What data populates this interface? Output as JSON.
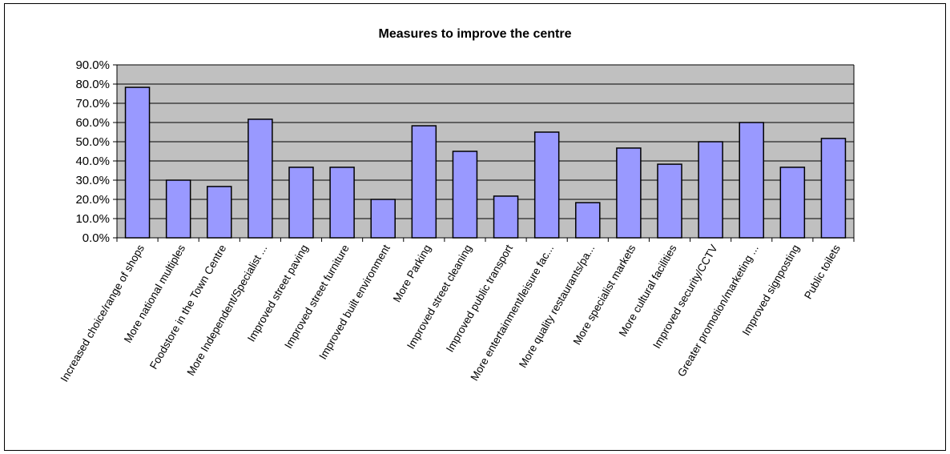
{
  "colors": {
    "plot_background": "#c0c0c0",
    "bar_fill": "#9999ff",
    "bar_stroke": "#000000",
    "gridline": "#000000"
  },
  "chart_data": {
    "type": "bar",
    "title": "Measures to improve the centre",
    "xlabel": "",
    "ylabel": "",
    "ylim": [
      0,
      90
    ],
    "y_tick_step": 10,
    "y_tick_format": "percent_one_decimal",
    "y_ticks": [
      "0.0%",
      "10.0%",
      "20.0%",
      "30.0%",
      "40.0%",
      "50.0%",
      "60.0%",
      "70.0%",
      "80.0%",
      "90.0%"
    ],
    "grid": "horizontal",
    "legend": "none",
    "categories": [
      "Increased choice/range of shops",
      "More national multiples",
      "Foodstore in the Town Centre",
      "More Independent/Specialist ...",
      "Improved street paving",
      "Improved street furniture",
      "Improved built environment",
      "More Parking",
      "Improved street cleaning",
      "Improved public transport",
      "More entertainment/leisure fac...",
      "More quality restaurants/pa...",
      "More specialist markets",
      "More cultural facilities",
      "Improved security/CCTV",
      "Greater promotion/marketing ...",
      "Improved signposting",
      "Public toilets"
    ],
    "values": [
      78.3,
      30.0,
      26.7,
      61.7,
      36.7,
      36.7,
      20.0,
      58.3,
      45.0,
      21.7,
      55.0,
      18.3,
      46.7,
      38.3,
      50.0,
      60.0,
      36.7,
      51.7
    ]
  }
}
